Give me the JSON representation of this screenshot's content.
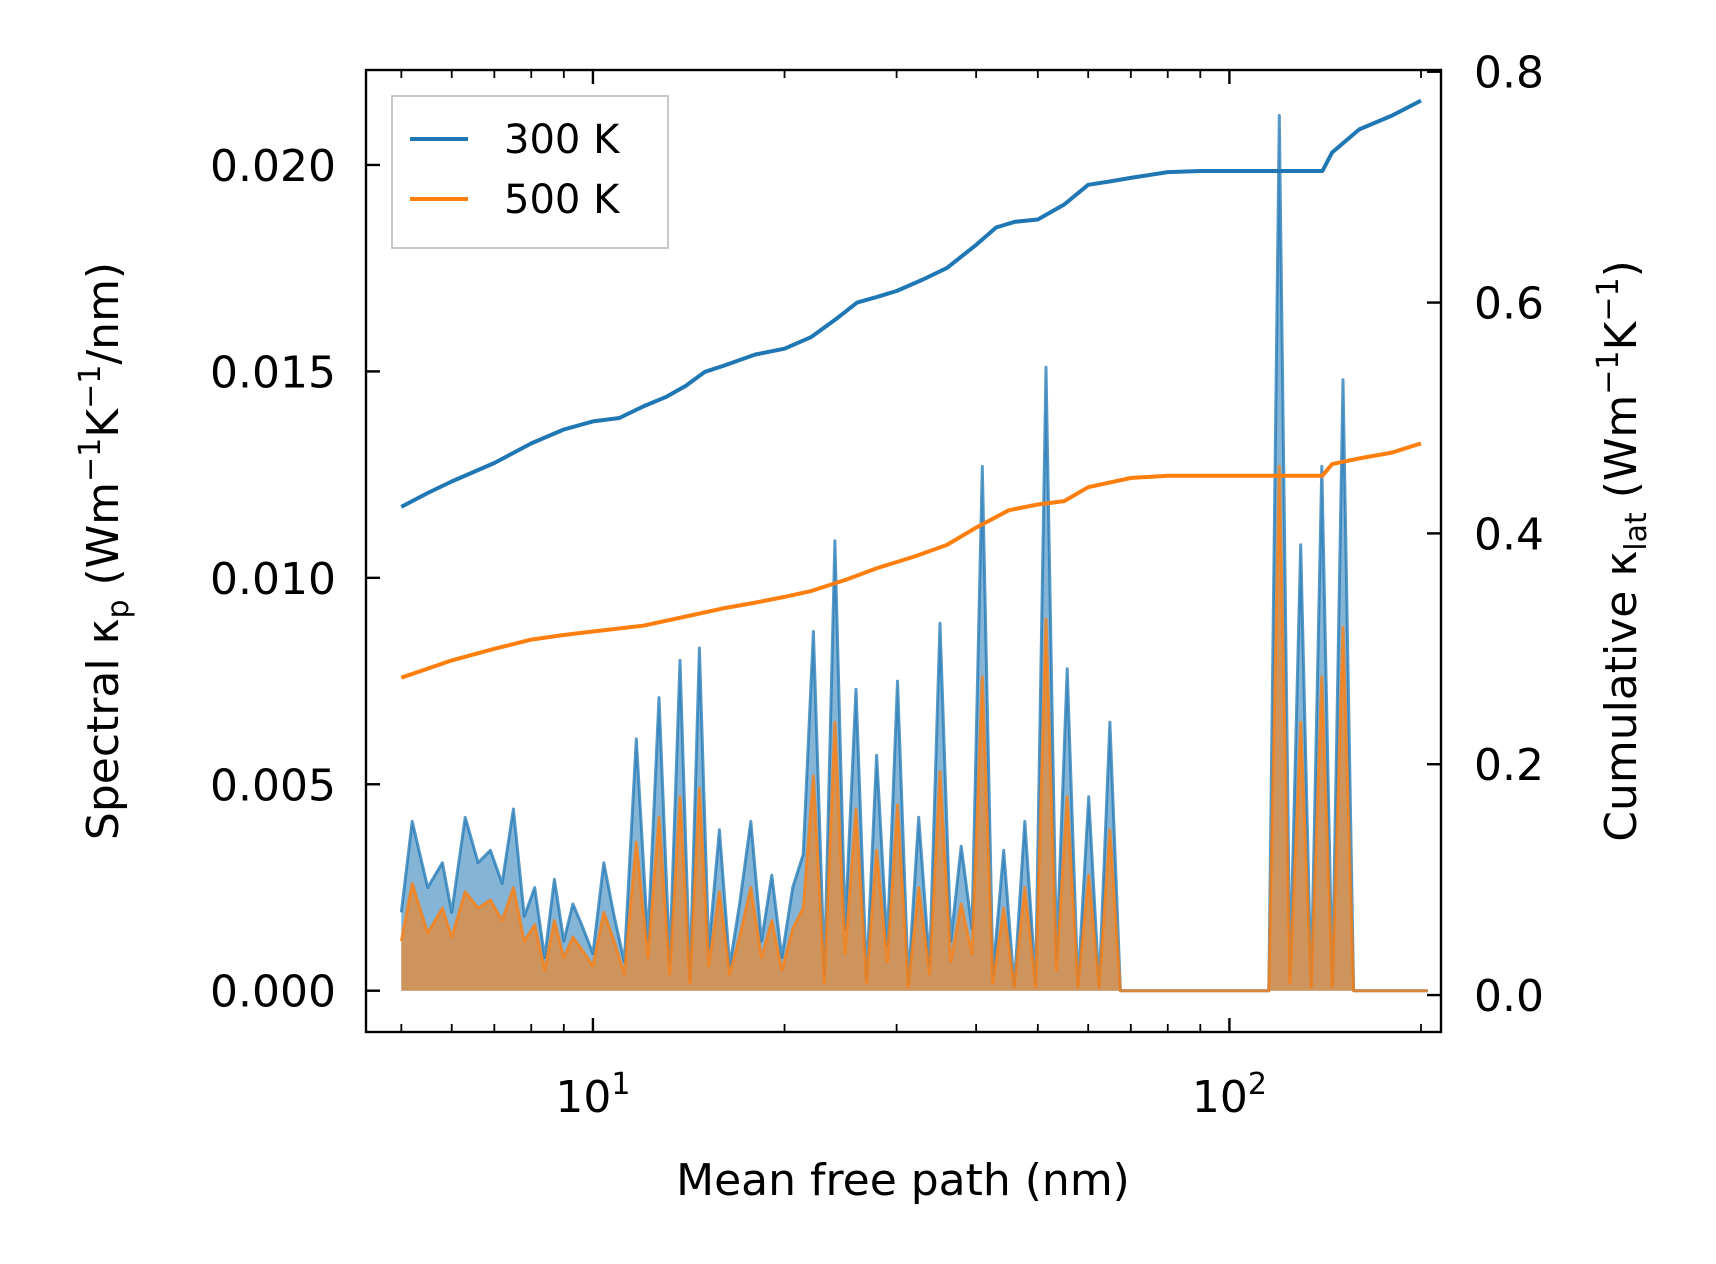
{
  "chart_data": {
    "type": "line",
    "title": "",
    "xlabel": "Mean free path (nm)",
    "ylabel_left": {
      "prefix": "Spectral κ",
      "sub": "p",
      "mid": " (Wm",
      "sup1": "−1",
      "mid2": "K",
      "sup2": "−1",
      "suffix": "/nm)"
    },
    "ylabel_right": {
      "prefix": "Cumulative κ",
      "sub": "lat",
      "mid": " (Wm",
      "sup1": "−1",
      "mid2": "K",
      "sup2": "−1",
      "suffix": ")"
    },
    "x_scale": "log",
    "xlim": [
      4.4,
      215
    ],
    "x_major_ticks": [
      {
        "value": 10,
        "base": "10",
        "exp": "1"
      },
      {
        "value": 100,
        "base": "10",
        "exp": "2"
      }
    ],
    "ylim_left": [
      -0.001,
      0.0223
    ],
    "y_left_ticks": [
      {
        "value": 0.0,
        "label": "0.000"
      },
      {
        "value": 0.005,
        "label": "0.005"
      },
      {
        "value": 0.01,
        "label": "0.010"
      },
      {
        "value": 0.015,
        "label": "0.015"
      },
      {
        "value": 0.02,
        "label": "0.020"
      }
    ],
    "ylim_right": [
      -0.032,
      0.8015
    ],
    "y_right_ticks": [
      {
        "value": 0.0,
        "label": "0.0"
      },
      {
        "value": 0.2,
        "label": "0.2"
      },
      {
        "value": 0.4,
        "label": "0.4"
      },
      {
        "value": 0.6,
        "label": "0.6"
      },
      {
        "value": 0.8,
        "label": "0.8"
      }
    ],
    "legend": {
      "position": "upper-left",
      "entries": [
        {
          "label": "300 K",
          "color": "#1f77b4"
        },
        {
          "label": "500 K",
          "color": "#ff7f0e"
        }
      ]
    },
    "spectral": [
      {
        "name": "300 K",
        "color": "#1f77b4",
        "x": [
          5.0,
          5.2,
          5.5,
          5.8,
          6.0,
          6.3,
          6.6,
          6.9,
          7.2,
          7.5,
          7.8,
          8.1,
          8.4,
          8.7,
          9.0,
          9.3,
          9.6,
          10.0,
          10.4,
          10.8,
          11.2,
          11.7,
          12.2,
          12.7,
          13.2,
          13.7,
          14.2,
          14.7,
          15.2,
          15.8,
          16.4,
          17.0,
          17.7,
          18.4,
          19.1,
          19.8,
          20.6,
          21.4,
          22.2,
          23.1,
          24.0,
          24.9,
          25.9,
          26.9,
          27.9,
          29.0,
          30.1,
          31.3,
          32.5,
          33.8,
          35.1,
          36.5,
          37.9,
          39.4,
          40.9,
          42.5,
          44.2,
          45.9,
          47.7,
          49.6,
          51.5,
          53.5,
          55.6,
          57.8,
          60.1,
          62.4,
          64.9,
          67.4,
          70.0,
          72.8,
          75.6,
          78.6,
          81.7,
          84.9,
          88.2,
          91.6,
          95.2,
          98.9,
          102.8,
          106.8,
          111.0,
          115.3,
          119.8,
          124.5,
          129.4,
          134.4,
          139.7,
          145.1,
          150.8,
          156.7,
          162.8,
          169.2,
          175.8,
          182.6,
          189.8,
          197.2,
          205.0
        ],
        "y": [
          0.0019,
          0.0041,
          0.0025,
          0.0031,
          0.0019,
          0.0042,
          0.0031,
          0.0034,
          0.0026,
          0.0044,
          0.0018,
          0.0025,
          0.0008,
          0.0027,
          0.0012,
          0.0021,
          0.0016,
          0.0009,
          0.0031,
          0.0018,
          0.0007,
          0.0061,
          0.0012,
          0.0071,
          0.0007,
          0.008,
          0.0003,
          0.0083,
          0.001,
          0.0039,
          0.0006,
          0.0021,
          0.0041,
          0.0012,
          0.0028,
          0.0008,
          0.0025,
          0.0033,
          0.0087,
          0.0004,
          0.0109,
          0.0015,
          0.0073,
          0.0003,
          0.0057,
          0.0011,
          0.0075,
          0.0002,
          0.0042,
          0.0006,
          0.0089,
          0.0012,
          0.0035,
          0.0015,
          0.0127,
          0.0004,
          0.0034,
          0.0001,
          0.0041,
          0.0002,
          0.0151,
          0.0008,
          0.0078,
          0.0001,
          0.0047,
          0.0001,
          0.0065,
          0.0,
          0.0,
          0.0,
          0.0,
          0.0,
          0.0,
          0.0,
          0.0,
          0.0,
          0.0,
          0.0,
          0.0,
          0.0,
          0.0,
          0.0,
          0.0212,
          0.0004,
          0.0108,
          0.0001,
          0.0127,
          0.0001,
          0.0148,
          0.0,
          0.0,
          0.0,
          0.0,
          0.0,
          0.0,
          0.0,
          0.0
        ]
      },
      {
        "name": "500 K",
        "color": "#ff7f0e",
        "x": [
          5.0,
          5.2,
          5.5,
          5.8,
          6.0,
          6.3,
          6.6,
          6.9,
          7.2,
          7.5,
          7.8,
          8.1,
          8.4,
          8.7,
          9.0,
          9.3,
          9.6,
          10.0,
          10.4,
          10.8,
          11.2,
          11.7,
          12.2,
          12.7,
          13.2,
          13.7,
          14.2,
          14.7,
          15.2,
          15.8,
          16.4,
          17.0,
          17.7,
          18.4,
          19.1,
          19.8,
          20.6,
          21.4,
          22.2,
          23.1,
          24.0,
          24.9,
          25.9,
          26.9,
          27.9,
          29.0,
          30.1,
          31.3,
          32.5,
          33.8,
          35.1,
          36.5,
          37.9,
          39.4,
          40.9,
          42.5,
          44.2,
          45.9,
          47.7,
          49.6,
          51.5,
          53.5,
          55.6,
          57.8,
          60.1,
          62.4,
          64.9,
          67.4,
          70.0,
          72.8,
          75.6,
          78.6,
          81.7,
          84.9,
          88.2,
          91.6,
          95.2,
          98.9,
          102.8,
          106.8,
          111.0,
          115.3,
          119.8,
          124.5,
          129.4,
          134.4,
          139.7,
          145.1,
          150.8,
          156.7,
          162.8,
          169.2,
          175.8,
          182.6,
          189.8,
          197.2,
          205.0
        ],
        "y": [
          0.0012,
          0.0026,
          0.0014,
          0.002,
          0.0013,
          0.0024,
          0.002,
          0.0022,
          0.0017,
          0.0025,
          0.0012,
          0.0016,
          0.0005,
          0.0017,
          0.0008,
          0.0013,
          0.001,
          0.0006,
          0.0019,
          0.0012,
          0.0004,
          0.0036,
          0.0008,
          0.0042,
          0.0004,
          0.0047,
          0.0002,
          0.0049,
          0.0006,
          0.0024,
          0.0004,
          0.0013,
          0.0025,
          0.0008,
          0.0017,
          0.0005,
          0.0015,
          0.002,
          0.0052,
          0.0002,
          0.0065,
          0.0009,
          0.0044,
          0.0002,
          0.0034,
          0.0007,
          0.0045,
          0.0001,
          0.0025,
          0.0004,
          0.0053,
          0.0007,
          0.0021,
          0.0009,
          0.0076,
          0.0002,
          0.002,
          0.0001,
          0.0025,
          0.0001,
          0.009,
          0.0005,
          0.0047,
          0.0001,
          0.0028,
          0.0001,
          0.0039,
          0.0,
          0.0,
          0.0,
          0.0,
          0.0,
          0.0,
          0.0,
          0.0,
          0.0,
          0.0,
          0.0,
          0.0,
          0.0,
          0.0,
          0.0,
          0.0127,
          0.0002,
          0.0065,
          0.0001,
          0.0076,
          0.0001,
          0.0088,
          0.0,
          0.0,
          0.0,
          0.0,
          0.0,
          0.0,
          0.0,
          0.0
        ]
      }
    ],
    "cumulative": [
      {
        "name": "300 K",
        "color": "#1f77b4",
        "x": [
          5.0,
          5.5,
          6.0,
          7.0,
          8.0,
          9.0,
          10.0,
          11.0,
          12.0,
          13.0,
          14.0,
          15.0,
          16.0,
          18.0,
          20.0,
          22.0,
          24.0,
          26.0,
          28.0,
          30.0,
          33.0,
          36.0,
          40.0,
          43.0,
          46.0,
          50.0,
          55.0,
          60.0,
          65.0,
          70.0,
          80.0,
          90.0,
          100.0,
          120.0,
          140.0,
          145.0,
          160.0,
          180.0,
          200.0
        ],
        "y": [
          0.423,
          0.435,
          0.445,
          0.461,
          0.478,
          0.49,
          0.497,
          0.5,
          0.51,
          0.518,
          0.528,
          0.54,
          0.545,
          0.555,
          0.56,
          0.57,
          0.585,
          0.6,
          0.605,
          0.61,
          0.62,
          0.63,
          0.65,
          0.665,
          0.67,
          0.672,
          0.685,
          0.702,
          0.705,
          0.708,
          0.713,
          0.714,
          0.714,
          0.714,
          0.714,
          0.73,
          0.75,
          0.762,
          0.775
        ]
      },
      {
        "name": "500 K",
        "color": "#ff7f0e",
        "x": [
          5.0,
          6.0,
          7.0,
          8.0,
          9.0,
          10.0,
          12.0,
          14.0,
          16.0,
          18.0,
          20.0,
          22.0,
          25.0,
          28.0,
          32.0,
          36.0,
          40.0,
          45.0,
          50.0,
          55.0,
          60.0,
          70.0,
          80.0,
          100.0,
          140.0,
          145.0,
          160.0,
          180.0,
          200.0
        ],
        "y": [
          0.275,
          0.29,
          0.3,
          0.308,
          0.312,
          0.315,
          0.32,
          0.328,
          0.335,
          0.34,
          0.345,
          0.35,
          0.36,
          0.37,
          0.38,
          0.39,
          0.405,
          0.42,
          0.425,
          0.428,
          0.44,
          0.448,
          0.45,
          0.45,
          0.45,
          0.46,
          0.465,
          0.47,
          0.478
        ]
      }
    ]
  }
}
